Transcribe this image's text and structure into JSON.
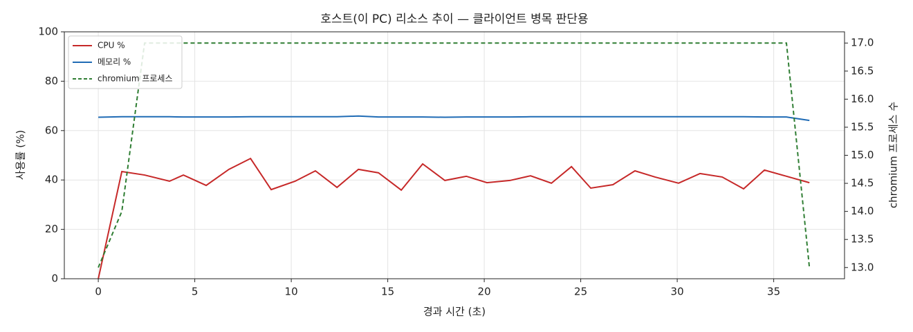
{
  "chart_data": {
    "type": "line",
    "title": "호스트(이 PC) 리소스 추이 — 클라이언트 병목 판단용",
    "xlabel": "경과 시간 (초)",
    "ylabel": "사용률 (%)",
    "y2label": "chromium 프로세스 수",
    "x": [
      0,
      1.22,
      2.4,
      3.69,
      4.41,
      5.59,
      6.77,
      7.89,
      8.96,
      10.2,
      11.25,
      12.37,
      13.48,
      14.52,
      15.7,
      16.81,
      17.96,
      19.07,
      20.14,
      21.33,
      22.4,
      23.48,
      24.52,
      25.52,
      26.67,
      27.81,
      28.85,
      30.07,
      31.18,
      32.33,
      33.44,
      34.52,
      35.66,
      36.85
    ],
    "series": [
      {
        "name": "CPU %",
        "color": "#c62828",
        "values": [
          0,
          43.4,
          42,
          39.5,
          42,
          37.8,
          44.3,
          48.7,
          36.1,
          39.5,
          43.7,
          37,
          44.3,
          42.9,
          35.9,
          46.5,
          39.8,
          41.5,
          38.9,
          39.8,
          41.7,
          38.7,
          45.4,
          36.7,
          38.1,
          43.7,
          41.2,
          38.7,
          42.6,
          41.2,
          36.4,
          44,
          41.5,
          38.9
        ]
      },
      {
        "name": "메모리 %",
        "color": "#1f6bb5",
        "values": [
          65.4,
          65.6,
          65.6,
          65.6,
          65.5,
          65.5,
          65.5,
          65.6,
          65.6,
          65.6,
          65.6,
          65.6,
          65.9,
          65.5,
          65.5,
          65.5,
          65.4,
          65.5,
          65.5,
          65.5,
          65.6,
          65.6,
          65.6,
          65.6,
          65.6,
          65.6,
          65.6,
          65.6,
          65.6,
          65.6,
          65.6,
          65.5,
          65.5,
          64.1
        ]
      },
      {
        "name": "chromium 프로세스",
        "color": "#2e7d32",
        "dashed": true,
        "axis": "y2",
        "values": [
          13,
          14,
          17,
          17,
          17,
          17,
          17,
          17,
          17,
          17,
          17,
          17,
          17,
          17,
          17,
          17,
          17,
          17,
          17,
          17,
          17,
          17,
          17,
          17,
          17,
          17,
          17,
          17,
          17,
          17,
          17,
          17,
          17,
          13
        ]
      }
    ],
    "xlim": [
      -1.76,
      38.67
    ],
    "xticks": [
      0,
      5,
      10,
      15,
      20,
      25,
      30,
      35
    ],
    "ylim": [
      0,
      100
    ],
    "yticks": [
      0,
      20,
      40,
      60,
      80,
      100
    ],
    "y2lim": [
      12.8,
      17.2
    ],
    "y2ticks": [
      {
        "value": 13,
        "label": "13.0"
      },
      13.5,
      {
        "value": 14,
        "label": "14.0"
      },
      14.5,
      {
        "value": 15,
        "label": "15.0"
      },
      15.5,
      {
        "value": 16,
        "label": "16.0"
      },
      16.5,
      {
        "value": 17,
        "label": "17.0"
      }
    ],
    "grid": true,
    "legend": "upper-left"
  }
}
